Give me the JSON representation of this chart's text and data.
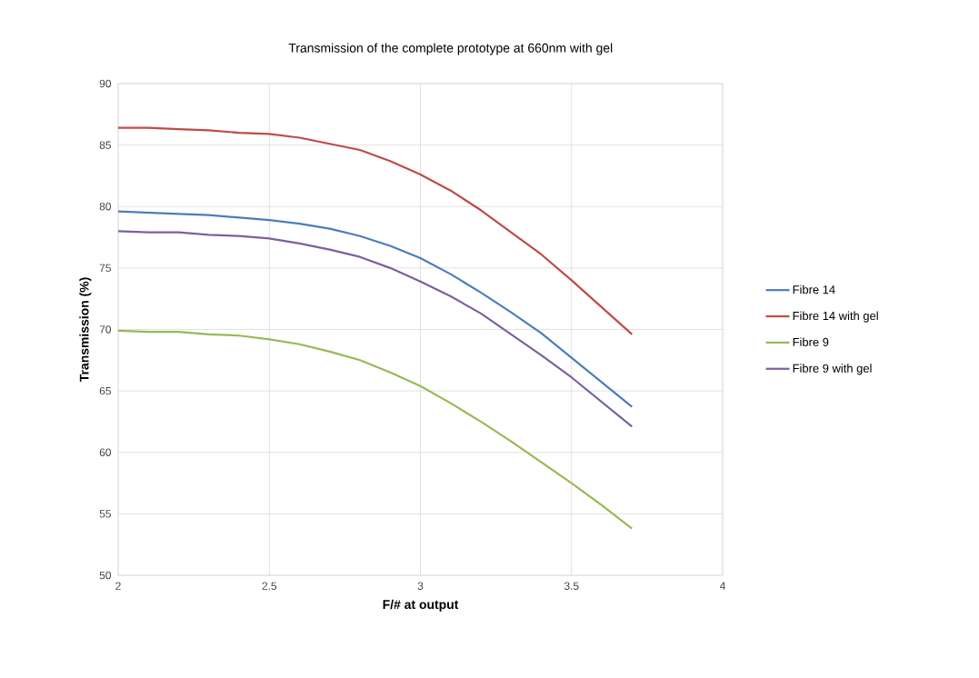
{
  "chart_data": {
    "type": "line",
    "title": "Transmission of the complete prototype at 660nm with gel",
    "xlabel": "F/# at output",
    "ylabel": "Transmission (%)",
    "x": [
      2.0,
      2.1,
      2.2,
      2.3,
      2.4,
      2.5,
      2.6,
      2.7,
      2.8,
      2.9,
      3.0,
      3.1,
      3.2,
      3.3,
      3.4,
      3.5,
      3.6,
      3.7
    ],
    "series": [
      {
        "name": "Fibre 14",
        "color": "#4a7ebb",
        "values": [
          79.6,
          79.5,
          79.4,
          79.3,
          79.1,
          78.9,
          78.6,
          78.2,
          77.6,
          76.8,
          75.8,
          74.5,
          73.0,
          71.4,
          69.7,
          67.7,
          65.7,
          63.7
        ]
      },
      {
        "name": "Fibre 14 with gel",
        "color": "#be4b48",
        "values": [
          86.4,
          86.4,
          86.3,
          86.2,
          86.0,
          85.9,
          85.6,
          85.1,
          84.6,
          83.7,
          82.6,
          81.3,
          79.7,
          77.9,
          76.1,
          74.0,
          71.8,
          69.6
        ]
      },
      {
        "name": "Fibre 9",
        "color": "#98b954",
        "values": [
          69.9,
          69.8,
          69.8,
          69.6,
          69.5,
          69.2,
          68.8,
          68.2,
          67.5,
          66.5,
          65.4,
          64.0,
          62.5,
          60.9,
          59.2,
          57.5,
          55.7,
          53.8
        ]
      },
      {
        "name": "Fibre 9 with gel",
        "color": "#7d5fa0",
        "values": [
          78.0,
          77.9,
          77.9,
          77.7,
          77.6,
          77.4,
          77.0,
          76.5,
          75.9,
          75.0,
          73.9,
          72.7,
          71.3,
          69.6,
          67.9,
          66.1,
          64.1,
          62.1
        ]
      }
    ],
    "xlim": [
      2,
      4
    ],
    "xticks": [
      2,
      2.5,
      3,
      3.5,
      4
    ],
    "ylim": [
      50,
      90
    ],
    "yticks": [
      50,
      55,
      60,
      65,
      70,
      75,
      80,
      85,
      90
    ],
    "grid": true,
    "legend": "right",
    "marker": "none",
    "line_style": "solid"
  }
}
